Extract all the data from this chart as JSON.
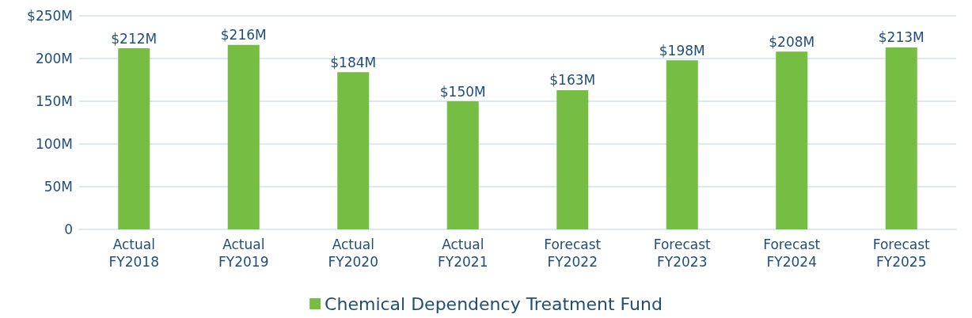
{
  "chart_data": {
    "type": "bar",
    "categories": [
      "Actual FY2018",
      "Actual FY2019",
      "Actual FY2020",
      "Actual FY2021",
      "Forecast FY2022",
      "Forecast FY2023",
      "Forecast FY2024",
      "Forecast FY2025"
    ],
    "series": [
      {
        "name": "Chemical Dependency Treatment Fund",
        "color": "#75bd43",
        "values": [
          212,
          216,
          184,
          150,
          163,
          198,
          208,
          213
        ],
        "value_labels": [
          "$212M",
          "$216M",
          "$184M",
          "$150M",
          "$163M",
          "$198M",
          "$208M",
          "$213M"
        ]
      }
    ],
    "ylim": [
      0,
      250
    ],
    "yticks": [
      {
        "value": 0,
        "label": "0"
      },
      {
        "value": 50,
        "label": "50M"
      },
      {
        "value": 100,
        "label": "100M"
      },
      {
        "value": 150,
        "label": "150M"
      },
      {
        "value": 200,
        "label": "200M"
      },
      {
        "value": 250,
        "label": "$250M"
      }
    ],
    "grid": "y",
    "legend": "bottom"
  }
}
